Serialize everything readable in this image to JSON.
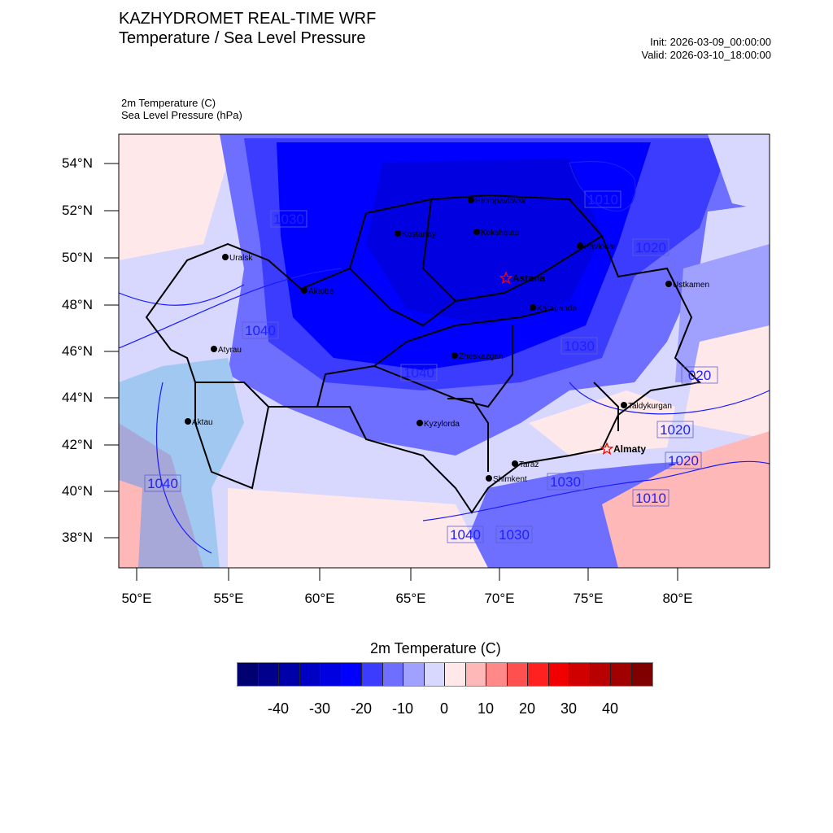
{
  "header": {
    "title": "KAZHYDROMET REAL-TIME WRF",
    "subtitle": "Temperature / Sea Level Pressure",
    "init": "Init: 2026-03-09_00:00:00",
    "valid": "Valid: 2026-03-10_18:00:00"
  },
  "fields": {
    "field1": "2m Temperature   (C)",
    "field2": "Sea Level Pressure   (hPa)"
  },
  "axes": {
    "lat_labels": [
      "54°N",
      "52°N",
      "50°N",
      "48°N",
      "46°N",
      "44°N",
      "42°N",
      "40°N",
      "38°N"
    ],
    "lon_labels": [
      "50°E",
      "55°E",
      "60°E",
      "65°E",
      "70°E",
      "75°E",
      "80°E"
    ]
  },
  "cities": [
    {
      "name": "Petropavlovsk",
      "type": "city"
    },
    {
      "name": "Kostanay",
      "type": "city"
    },
    {
      "name": "Kokshetau",
      "type": "city"
    },
    {
      "name": "Pavlodar",
      "type": "city"
    },
    {
      "name": "Uralsk",
      "type": "city"
    },
    {
      "name": "Astana",
      "type": "capital"
    },
    {
      "name": "Ustkamen",
      "type": "city"
    },
    {
      "name": "Aktobe",
      "type": "city"
    },
    {
      "name": "Karaganda",
      "type": "city"
    },
    {
      "name": "Atyrau",
      "type": "city"
    },
    {
      "name": "Zheskazgan",
      "type": "city"
    },
    {
      "name": "Taldykurgan",
      "type": "city"
    },
    {
      "name": "Aktau",
      "type": "city"
    },
    {
      "name": "Kyzylorda",
      "type": "city"
    },
    {
      "name": "Almaty",
      "type": "capital"
    },
    {
      "name": "Taraz",
      "type": "city"
    },
    {
      "name": "Shimkent",
      "type": "city"
    }
  ],
  "isobar_labels": [
    "1010",
    "1030",
    "1020",
    "1040",
    "1040",
    "1030",
    "020",
    "1020",
    "1020",
    "1030",
    "1010",
    "1040",
    "1040",
    "1030"
  ],
  "colorbar": {
    "title": "2m Temperature  (C)",
    "labels": [
      "-40",
      "-30",
      "-20",
      "-10",
      "0",
      "10",
      "20",
      "30",
      "40"
    ],
    "levels": [
      -50,
      -45,
      -40,
      -35,
      -30,
      -25,
      -20,
      -15,
      -10,
      -5,
      0,
      5,
      10,
      15,
      20,
      25,
      30,
      35,
      40,
      45,
      50
    ],
    "colors": [
      "#000070",
      "#00008c",
      "#0000a8",
      "#0000c4",
      "#0000e0",
      "#0000ff",
      "#3c3cff",
      "#6e6eff",
      "#a0a0ff",
      "#d8d8ff",
      "#ffe8ea",
      "#ffb8b8",
      "#ff8888",
      "#ff5050",
      "#ff2020",
      "#f00000",
      "#d00000",
      "#b80000",
      "#a00000",
      "#800000"
    ]
  }
}
